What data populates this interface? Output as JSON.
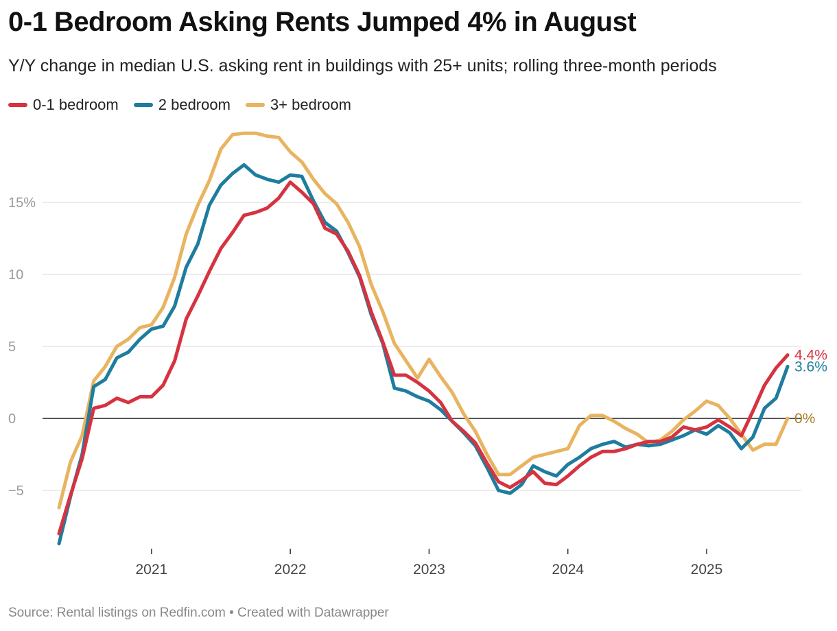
{
  "chart_data": {
    "type": "line",
    "title": "0-1 Bedroom Asking Rents Jumped 4% in August",
    "subtitle": "Y/Y change in median U.S. asking rent in buildings with 25+ units; rolling three-month periods",
    "source": "Source: Rental listings on Redfin.com • Created with Datawrapper",
    "xlabel": "",
    "ylabel": "",
    "ylim": [
      -9,
      20
    ],
    "x_start": "2020-05",
    "x_end": "2025-08",
    "x_ticks": [
      {
        "label": "2021",
        "date": "2021-01"
      },
      {
        "label": "2022",
        "date": "2022-01"
      },
      {
        "label": "2023",
        "date": "2023-01"
      },
      {
        "label": "2024",
        "date": "2024-01"
      },
      {
        "label": "2025",
        "date": "2025-01"
      }
    ],
    "y_ticks": [
      {
        "value": 15,
        "label": "15%"
      },
      {
        "value": 10,
        "label": "10"
      },
      {
        "value": 5,
        "label": "5"
      },
      {
        "value": 0,
        "label": "0"
      },
      {
        "value": -5,
        "label": "−5"
      }
    ],
    "grid": true,
    "legend_position": "top-left",
    "series": [
      {
        "name": "0-1 bedroom",
        "color": "#d63341",
        "end_label": "4.4%",
        "end_label_color": "#d63341",
        "values": [
          -8.0,
          -5.3,
          -2.8,
          0.7,
          0.9,
          1.4,
          1.1,
          1.5,
          1.5,
          2.3,
          4.0,
          6.9,
          8.5,
          10.2,
          11.8,
          12.9,
          14.1,
          14.3,
          14.6,
          15.3,
          16.4,
          15.7,
          14.9,
          13.2,
          12.8,
          11.6,
          9.9,
          7.4,
          5.3,
          3.0,
          3.0,
          2.5,
          1.9,
          1.1,
          -0.2,
          -0.9,
          -1.7,
          -3.1,
          -4.4,
          -4.8,
          -4.3,
          -3.7,
          -4.5,
          -4.6,
          -4.0,
          -3.3,
          -2.7,
          -2.3,
          -2.3,
          -2.1,
          -1.8,
          -1.6,
          -1.6,
          -1.3,
          -0.6,
          -0.8,
          -0.6,
          -0.1,
          -0.6,
          -1.2,
          0.5,
          2.3,
          3.5,
          4.4
        ]
      },
      {
        "name": "2 bedroom",
        "color": "#1e7d9e",
        "end_label": "3.6%",
        "end_label_color": "#1e7d9e",
        "values": [
          -8.7,
          -5.4,
          -2.5,
          2.2,
          2.7,
          4.2,
          4.6,
          5.5,
          6.2,
          6.4,
          7.8,
          10.5,
          12.1,
          14.8,
          16.2,
          17.0,
          17.6,
          16.9,
          16.6,
          16.4,
          16.9,
          16.8,
          15.1,
          13.6,
          13.0,
          11.5,
          9.8,
          7.2,
          5.2,
          2.1,
          1.9,
          1.5,
          1.2,
          0.6,
          -0.2,
          -1.0,
          -1.9,
          -3.4,
          -5.0,
          -5.2,
          -4.6,
          -3.3,
          -3.7,
          -4.0,
          -3.2,
          -2.7,
          -2.1,
          -1.8,
          -1.6,
          -2.0,
          -1.8,
          -1.9,
          -1.8,
          -1.5,
          -1.2,
          -0.8,
          -1.1,
          -0.5,
          -1.0,
          -2.1,
          -1.3,
          0.7,
          1.4,
          3.6
        ]
      },
      {
        "name": "3+ bedroom",
        "color": "#e8b460",
        "end_label": "0%",
        "end_label_color": "#a97c28",
        "values": [
          -6.2,
          -3.0,
          -1.2,
          2.6,
          3.6,
          5.0,
          5.5,
          6.3,
          6.5,
          7.7,
          9.8,
          12.8,
          14.8,
          16.5,
          18.7,
          19.7,
          19.8,
          19.8,
          19.6,
          19.5,
          18.5,
          17.8,
          16.6,
          15.6,
          14.9,
          13.6,
          11.9,
          9.3,
          7.4,
          5.2,
          4.0,
          2.8,
          4.1,
          2.9,
          1.8,
          0.3,
          -0.9,
          -2.5,
          -3.9,
          -3.9,
          -3.3,
          -2.7,
          -2.5,
          -2.3,
          -2.1,
          -0.5,
          0.2,
          0.2,
          -0.2,
          -0.7,
          -1.1,
          -1.7,
          -1.5,
          -0.9,
          -0.1,
          0.5,
          1.2,
          0.9,
          0.0,
          -1.1,
          -2.2,
          -1.8,
          -1.8,
          0.0
        ]
      }
    ]
  }
}
